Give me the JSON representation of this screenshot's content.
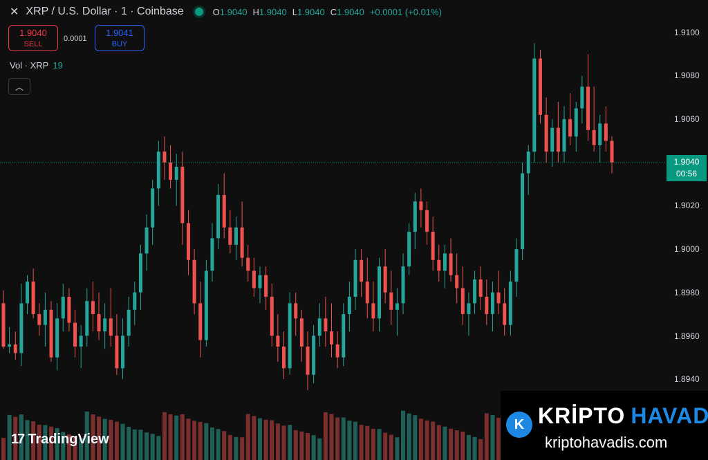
{
  "header": {
    "symbol_title": "XRP / U.S. Dollar · 1 · Coinbase",
    "ohlc": [
      {
        "k": "O",
        "v": "1.9040"
      },
      {
        "k": "H",
        "v": "1.9040"
      },
      {
        "k": "L",
        "v": "1.9040"
      },
      {
        "k": "C",
        "v": "1.9040"
      }
    ],
    "change": "+0.0001 (+0.01%)"
  },
  "trade": {
    "sell_price": "1.9040",
    "sell_label": "SELL",
    "spread": "0.0001",
    "buy_price": "1.9041",
    "buy_label": "BUY"
  },
  "volume_label": {
    "name": "Vol · XRP",
    "value": "19"
  },
  "price_axis": [
    "1.9100",
    "1.9080",
    "1.9060",
    "1.9040",
    "1.9020",
    "1.9000",
    "1.8980",
    "1.8960",
    "1.8940"
  ],
  "last_price": {
    "price": "1.9040",
    "countdown": "00:56"
  },
  "watermark": {
    "tradingview": "TradingView"
  },
  "brand": {
    "title_left": "KRİPTO",
    "title_right": "HAVADİS",
    "url": "kriptohavadis.com",
    "badge": "K"
  },
  "colors": {
    "up": "#26a69a",
    "down": "#ef5350",
    "bg": "#0f0f0f",
    "accent": "#089981"
  },
  "chart_data": {
    "type": "candlestick",
    "symbol": "XRP/USD",
    "interval": "1",
    "ylim": [
      1.8925,
      1.911
    ],
    "candles": [
      [
        1.8975,
        1.8981,
        1.8954,
        1.8955
      ],
      [
        1.8955,
        1.8964,
        1.8952,
        1.8956
      ],
      [
        1.8956,
        1.8962,
        1.8949,
        1.8952
      ],
      [
        1.8952,
        1.8984,
        1.8946,
        1.8975
      ],
      [
        1.8975,
        1.8988,
        1.897,
        1.8985
      ],
      [
        1.8985,
        1.8991,
        1.8968,
        1.897
      ],
      [
        1.897,
        1.8975,
        1.896,
        1.8965
      ],
      [
        1.8965,
        1.898,
        1.8955,
        1.8972
      ],
      [
        1.8972,
        1.8976,
        1.8948,
        1.895
      ],
      [
        1.895,
        1.8975,
        1.8944,
        1.8968
      ],
      [
        1.8968,
        1.8984,
        1.8962,
        1.8978
      ],
      [
        1.8978,
        1.8982,
        1.8962,
        1.8966
      ],
      [
        1.8966,
        1.8972,
        1.895,
        1.8955
      ],
      [
        1.8955,
        1.8965,
        1.8945,
        1.896
      ],
      [
        1.896,
        1.8982,
        1.8955,
        1.8976
      ],
      [
        1.8976,
        1.8985,
        1.8962,
        1.897
      ],
      [
        1.897,
        1.898,
        1.8958,
        1.8962
      ],
      [
        1.8962,
        1.8975,
        1.8954,
        1.8968
      ],
      [
        1.8968,
        1.8982,
        1.8955,
        1.896
      ],
      [
        1.896,
        1.897,
        1.8942,
        1.8945
      ],
      [
        1.8945,
        1.8968,
        1.894,
        1.896
      ],
      [
        1.896,
        1.8978,
        1.8955,
        1.8972
      ],
      [
        1.8972,
        1.8985,
        1.8965,
        1.898
      ],
      [
        1.898,
        1.9002,
        1.8972,
        1.8998
      ],
      [
        1.8998,
        1.9016,
        1.899,
        1.901
      ],
      [
        1.901,
        1.9032,
        1.9002,
        1.9028
      ],
      [
        1.9028,
        1.905,
        1.902,
        1.9045
      ],
      [
        1.9045,
        1.9052,
        1.9032,
        1.904
      ],
      [
        1.904,
        1.9048,
        1.9028,
        1.9032
      ],
      [
        1.9032,
        1.9044,
        1.902,
        1.9038
      ],
      [
        1.9038,
        1.9045,
        1.9002,
        1.9012
      ],
      [
        1.9012,
        1.9018,
        1.8988,
        1.8995
      ],
      [
        1.8995,
        1.9,
        1.897,
        1.8975
      ],
      [
        1.8975,
        1.8985,
        1.895,
        1.8958
      ],
      [
        1.8958,
        1.8995,
        1.8955,
        1.899
      ],
      [
        1.899,
        1.9012,
        1.8985,
        1.9005
      ],
      [
        1.9005,
        1.903,
        1.9,
        1.9025
      ],
      [
        1.9025,
        1.9035,
        1.9005,
        1.901
      ],
      [
        1.901,
        1.9018,
        1.8998,
        1.9002
      ],
      [
        1.9002,
        1.9015,
        1.8995,
        1.901
      ],
      [
        1.901,
        1.9022,
        1.8992,
        1.8996
      ],
      [
        1.8996,
        1.9002,
        1.8985,
        1.899
      ],
      [
        1.899,
        1.8996,
        1.8978,
        1.8982
      ],
      [
        1.8982,
        1.8992,
        1.8975,
        1.8988
      ],
      [
        1.8988,
        1.8992,
        1.8972,
        1.8978
      ],
      [
        1.8978,
        1.8984,
        1.8955,
        1.896
      ],
      [
        1.896,
        1.897,
        1.8948,
        1.8955
      ],
      [
        1.8955,
        1.8962,
        1.894,
        1.8945
      ],
      [
        1.8945,
        1.898,
        1.8942,
        1.8975
      ],
      [
        1.8975,
        1.898,
        1.896,
        1.8968
      ],
      [
        1.8968,
        1.8972,
        1.8948,
        1.8955
      ],
      [
        1.8955,
        1.8962,
        1.8935,
        1.8942
      ],
      [
        1.8942,
        1.8965,
        1.8938,
        1.896
      ],
      [
        1.896,
        1.8975,
        1.8955,
        1.8968
      ],
      [
        1.8968,
        1.8978,
        1.8955,
        1.8962
      ],
      [
        1.8962,
        1.8975,
        1.895,
        1.8956
      ],
      [
        1.8956,
        1.8962,
        1.8945,
        1.895
      ],
      [
        1.895,
        1.8975,
        1.8946,
        1.897
      ],
      [
        1.897,
        1.8985,
        1.8962,
        1.8978
      ],
      [
        1.8978,
        1.9,
        1.8972,
        1.8995
      ],
      [
        1.8995,
        1.9,
        1.8978,
        1.8985
      ],
      [
        1.8985,
        1.8996,
        1.8968,
        1.8975
      ],
      [
        1.8975,
        1.8985,
        1.8962,
        1.8968
      ],
      [
        1.8968,
        1.8996,
        1.8962,
        1.8992
      ],
      [
        1.8992,
        1.9,
        1.8975,
        1.898
      ],
      [
        1.898,
        1.899,
        1.8965,
        1.8972
      ],
      [
        1.8972,
        1.8982,
        1.896,
        1.8975
      ],
      [
        1.8975,
        1.8998,
        1.897,
        1.8992
      ],
      [
        1.8992,
        1.9012,
        1.8988,
        1.9008
      ],
      [
        1.9008,
        1.9026,
        1.9,
        1.9022
      ],
      [
        1.9022,
        1.9028,
        1.901,
        1.9018
      ],
      [
        1.9018,
        1.9022,
        1.9002,
        1.9008
      ],
      [
        1.9008,
        1.9015,
        1.899,
        1.8995
      ],
      [
        1.8995,
        1.9002,
        1.8985,
        1.899
      ],
      [
        1.899,
        1.9002,
        1.8982,
        1.8998
      ],
      [
        1.8998,
        1.9005,
        1.8985,
        1.8988
      ],
      [
        1.8988,
        1.8998,
        1.8975,
        1.8982
      ],
      [
        1.8982,
        1.8992,
        1.8965,
        1.897
      ],
      [
        1.897,
        1.898,
        1.896,
        1.8975
      ],
      [
        1.8975,
        1.899,
        1.897,
        1.8986
      ],
      [
        1.8986,
        1.8992,
        1.8972,
        1.8978
      ],
      [
        1.8978,
        1.8986,
        1.8965,
        1.897
      ],
      [
        1.897,
        1.8985,
        1.8962,
        1.898
      ],
      [
        1.898,
        1.899,
        1.897,
        1.8975
      ],
      [
        1.8975,
        1.8982,
        1.896,
        1.8965
      ],
      [
        1.8965,
        1.899,
        1.896,
        1.8985
      ],
      [
        1.8985,
        1.9005,
        1.8978,
        1.9
      ],
      [
        1.9,
        1.904,
        1.8995,
        1.9035
      ],
      [
        1.9035,
        1.9048,
        1.9025,
        1.9045
      ],
      [
        1.9045,
        1.9095,
        1.904,
        1.9088
      ],
      [
        1.9088,
        1.9092,
        1.9058,
        1.9062
      ],
      [
        1.9062,
        1.907,
        1.904,
        1.9045
      ],
      [
        1.9045,
        1.906,
        1.9038,
        1.9056
      ],
      [
        1.9056,
        1.9068,
        1.904,
        1.9045
      ],
      [
        1.9045,
        1.9066,
        1.904,
        1.906
      ],
      [
        1.906,
        1.9072,
        1.9048,
        1.9052
      ],
      [
        1.9052,
        1.9068,
        1.9045,
        1.9065
      ],
      [
        1.9065,
        1.908,
        1.9058,
        1.9075
      ],
      [
        1.9075,
        1.909,
        1.905,
        1.9055
      ],
      [
        1.9055,
        1.9075,
        1.9045,
        1.9048
      ],
      [
        1.9048,
        1.9062,
        1.904,
        1.9058
      ],
      [
        1.9058,
        1.9066,
        1.9045,
        1.905
      ],
      [
        1.905,
        1.9052,
        1.9035,
        1.904
      ]
    ]
  }
}
